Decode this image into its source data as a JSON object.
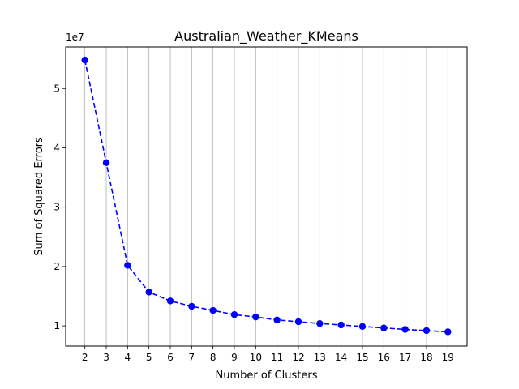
{
  "chart_data": {
    "type": "line",
    "title": "Australian_Weather_KMeans",
    "xlabel": "Number of Clusters",
    "ylabel": "Sum of Squared Errors",
    "y_offset_label": "1e7",
    "x": [
      2,
      3,
      4,
      5,
      6,
      7,
      8,
      9,
      10,
      11,
      12,
      13,
      14,
      15,
      16,
      17,
      18,
      19
    ],
    "series": [
      {
        "values": [
          54.8,
          37.5,
          20.2,
          15.7,
          14.2,
          13.3,
          12.6,
          11.9,
          11.5,
          11.0,
          10.7,
          10.4,
          10.15,
          9.9,
          9.65,
          9.4,
          9.2,
          9.0
        ],
        "color": "#0000ff",
        "line_style": "dashed",
        "marker": "circle"
      }
    ],
    "xticks": [
      2,
      3,
      4,
      5,
      6,
      7,
      8,
      9,
      10,
      11,
      12,
      13,
      14,
      15,
      16,
      17,
      18,
      19
    ],
    "yticks": [
      10,
      20,
      30,
      40,
      50
    ],
    "ytick_labels": [
      "1",
      "2",
      "3",
      "4",
      "5"
    ],
    "xlim": [
      1.1,
      19.9
    ],
    "ylim": [
      6.6,
      57.0
    ],
    "grid": "vertical",
    "grid_color": "#b0b0b0"
  }
}
